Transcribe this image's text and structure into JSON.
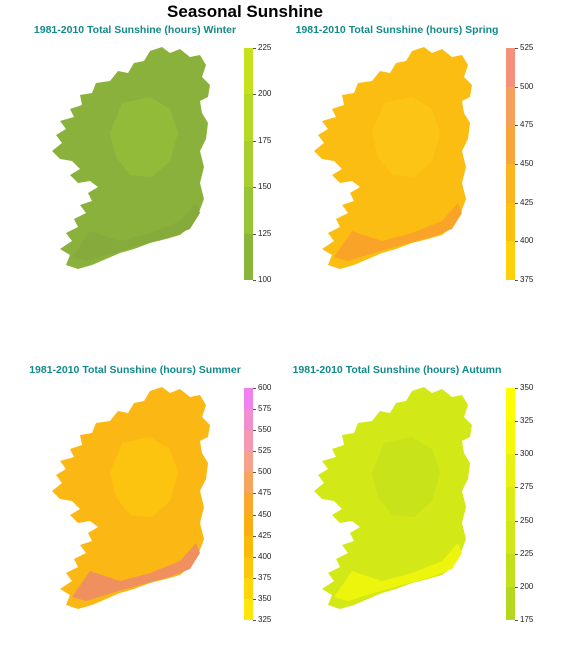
{
  "title": "Seasonal Sunshine",
  "panels": [
    {
      "title": "1981-2010 Total Sunshine (hours)  Winter",
      "season": "Winter",
      "legend_ticks": [
        225,
        200,
        175,
        150,
        125,
        100
      ],
      "legend_colors": [
        "#c6e01c",
        "#b6d827",
        "#a8cf2f",
        "#98c535",
        "#89b63a"
      ],
      "map_colors": {
        "base": "#8bb13d",
        "inland": "#93bb3a",
        "coast": "#86ab3c"
      }
    },
    {
      "title": "1981-2010 Total Sunshine (hours)  Spring",
      "season": "Spring",
      "legend_ticks": [
        525,
        500,
        475,
        450,
        425,
        400,
        375
      ],
      "legend_colors": [
        "#f5917a",
        "#f7a05c",
        "#f8a63c",
        "#fbb520",
        "#fdc010",
        "#ffd10a"
      ],
      "map_colors": {
        "base": "#fbbd12",
        "inland": "#fcc515",
        "coast": "#f9a428"
      }
    },
    {
      "title": "1981-2010 Total Sunshine (hours)  Summer",
      "season": "Summer",
      "legend_ticks": [
        600,
        575,
        550,
        525,
        500,
        475,
        450,
        425,
        400,
        375,
        350,
        325
      ],
      "legend_colors": [
        "#ee82ee",
        "#f08fd0",
        "#f39ab0",
        "#f5a28c",
        "#f6a55e",
        "#f8a82c",
        "#f9ad10",
        "#fbba0a",
        "#fcc70a",
        "#fdd70a",
        "#fee60a"
      ],
      "map_colors": {
        "base": "#fbb814",
        "inland": "#fcc40f",
        "coast": "#f0905e"
      }
    },
    {
      "title": "1981-2010 Total Sunshine (hours)  Autumn",
      "season": "Autumn",
      "legend_ticks": [
        350,
        325,
        300,
        275,
        250,
        225,
        200,
        175
      ],
      "legend_colors": [
        "#ffff00",
        "#f6f808",
        "#e8f210",
        "#dbec14",
        "#d0e819",
        "#c2e01b",
        "#b4d81f"
      ],
      "map_colors": {
        "base": "#d2e817",
        "inland": "#c8e31a",
        "coast": "#eef50c"
      }
    }
  ]
}
